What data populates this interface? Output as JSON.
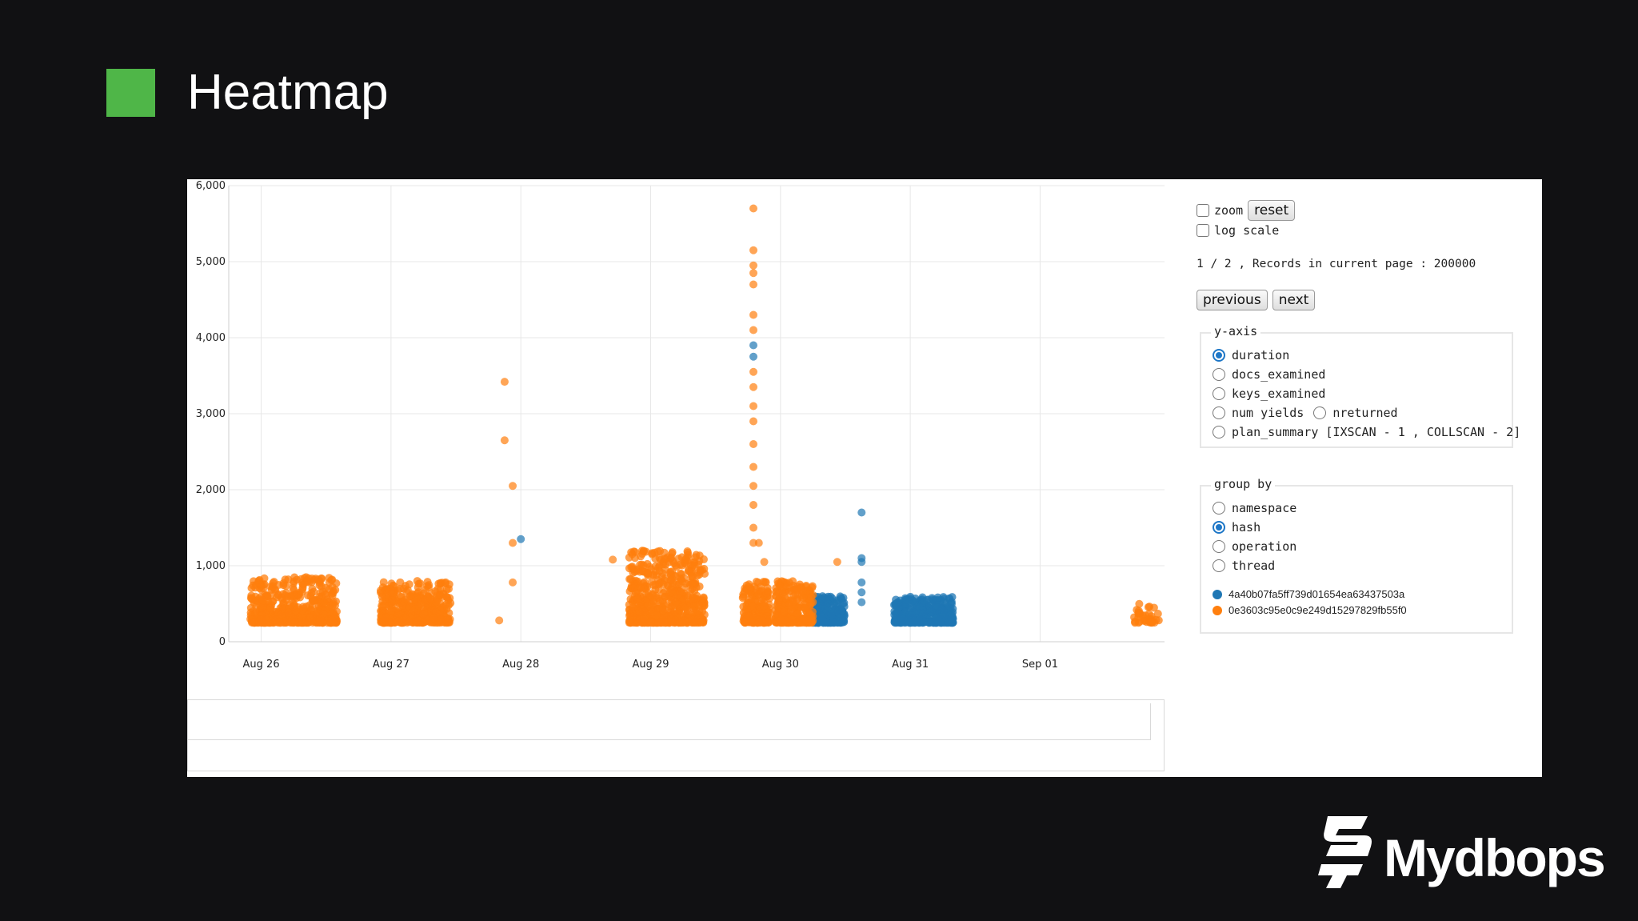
{
  "slide": {
    "title": "Heatmap",
    "brand": "Mydbops",
    "marker_color": "#4fb648"
  },
  "controls": {
    "zoom_label": "zoom",
    "reset_label": "reset",
    "log_scale_label": "log scale",
    "page_info": "1 / 2 , Records in current page : 200000",
    "previous_label": "previous",
    "next_label": "next",
    "yaxis_group": {
      "title": "y-axis",
      "options": [
        "duration",
        "docs_examined",
        "keys_examined",
        "num yields",
        "nreturned",
        "plan_summary [IXSCAN - 1 , COLLSCAN - 2]"
      ],
      "selected": "duration"
    },
    "groupby_group": {
      "title": "group by",
      "options": [
        "namespace",
        "hash",
        "operation",
        "thread"
      ],
      "selected": "hash"
    },
    "legend": [
      {
        "label": "4a40b07fa5ff739d01654ea63437503a",
        "color": "#1f77b4"
      },
      {
        "label": "0e3603c95e0c9e249d15297829fb55f0",
        "color": "#ff7f0e"
      }
    ]
  },
  "chart_data": {
    "type": "scatter",
    "title": "",
    "xlabel": "",
    "ylabel": "",
    "x_ticks": [
      "Aug 26",
      "Aug 27",
      "Aug 28",
      "Aug 29",
      "Aug 30",
      "Aug 31",
      "Sep 01"
    ],
    "y_ticks": [
      "0",
      "1,000",
      "2,000",
      "3,000",
      "4,000",
      "5,000",
      "6,000"
    ],
    "xlim": [
      "Aug 25 18:00",
      "Sep 01 23:00"
    ],
    "ylim": [
      0,
      6000
    ],
    "grid": true,
    "series": [
      {
        "name": "4a40b07fa5ff739d01654ea63437503a",
        "color": "#1f77b4",
        "clusters": [
          {
            "x_start": "Aug 30 06:00",
            "x_end": "Aug 30 12:00",
            "y_min": 250,
            "y_max": 600,
            "count": 240
          },
          {
            "x_start": "Aug 30 21:00",
            "x_end": "Aug 31 08:00",
            "y_min": 250,
            "y_max": 600,
            "count": 360
          }
        ],
        "points": [
          {
            "x": "Aug 28 00:00",
            "y": 1350
          },
          {
            "x": "Aug 30 15:00",
            "y": 1700
          },
          {
            "x": "Aug 30 15:00",
            "y": 1100
          },
          {
            "x": "Aug 30 15:00",
            "y": 1050
          },
          {
            "x": "Aug 30 15:00",
            "y": 780
          },
          {
            "x": "Aug 30 15:00",
            "y": 650
          },
          {
            "x": "Aug 30 15:00",
            "y": 520
          },
          {
            "x": "Aug 29 19:00",
            "y": 3900
          },
          {
            "x": "Aug 29 19:00",
            "y": 3750
          }
        ]
      },
      {
        "name": "0e3603c95e0c9e249d15297829fb55f0",
        "color": "#ff7f0e",
        "clusters": [
          {
            "x_start": "Aug 25 22:00",
            "x_end": "Aug 26 14:00",
            "y_min": 250,
            "y_max": 850,
            "count": 500
          },
          {
            "x_start": "Aug 26 22:00",
            "x_end": "Aug 27 11:00",
            "y_min": 250,
            "y_max": 800,
            "count": 420
          },
          {
            "x_start": "Aug 28 20:00",
            "x_end": "Aug 29 10:00",
            "y_min": 250,
            "y_max": 1200,
            "count": 600
          },
          {
            "x_start": "Aug 29 17:00",
            "x_end": "Aug 29 22:00",
            "y_min": 250,
            "y_max": 800,
            "count": 200
          },
          {
            "x_start": "Aug 29 23:00",
            "x_end": "Aug 30 06:00",
            "y_min": 250,
            "y_max": 800,
            "count": 260
          },
          {
            "x_start": "Sep 01 17:00",
            "x_end": "Sep 01 22:00",
            "y_min": 250,
            "y_max": 500,
            "count": 40
          }
        ],
        "points": [
          {
            "x": "Aug 27 21:00",
            "y": 3420
          },
          {
            "x": "Aug 27 21:00",
            "y": 2650
          },
          {
            "x": "Aug 27 22:30",
            "y": 2050
          },
          {
            "x": "Aug 27 22:30",
            "y": 1300
          },
          {
            "x": "Aug 27 22:30",
            "y": 780
          },
          {
            "x": "Aug 27 20:00",
            "y": 280
          },
          {
            "x": "Aug 29 19:00",
            "y": 5700
          },
          {
            "x": "Aug 29 19:00",
            "y": 5150
          },
          {
            "x": "Aug 29 19:00",
            "y": 4950
          },
          {
            "x": "Aug 29 19:00",
            "y": 4850
          },
          {
            "x": "Aug 29 19:00",
            "y": 4700
          },
          {
            "x": "Aug 29 19:00",
            "y": 4300
          },
          {
            "x": "Aug 29 19:00",
            "y": 4100
          },
          {
            "x": "Aug 29 19:00",
            "y": 3550
          },
          {
            "x": "Aug 29 19:00",
            "y": 3350
          },
          {
            "x": "Aug 29 19:00",
            "y": 3100
          },
          {
            "x": "Aug 29 19:00",
            "y": 2900
          },
          {
            "x": "Aug 29 19:00",
            "y": 2600
          },
          {
            "x": "Aug 29 19:00",
            "y": 2300
          },
          {
            "x": "Aug 29 19:00",
            "y": 2050
          },
          {
            "x": "Aug 29 19:00",
            "y": 1800
          },
          {
            "x": "Aug 29 19:00",
            "y": 1500
          },
          {
            "x": "Aug 29 19:00",
            "y": 1300
          },
          {
            "x": "Aug 29 20:00",
            "y": 1300
          },
          {
            "x": "Aug 29 21:00",
            "y": 1050
          },
          {
            "x": "Aug 30 10:30",
            "y": 1050
          },
          {
            "x": "Aug 28 17:00",
            "y": 1080
          }
        ]
      }
    ]
  }
}
